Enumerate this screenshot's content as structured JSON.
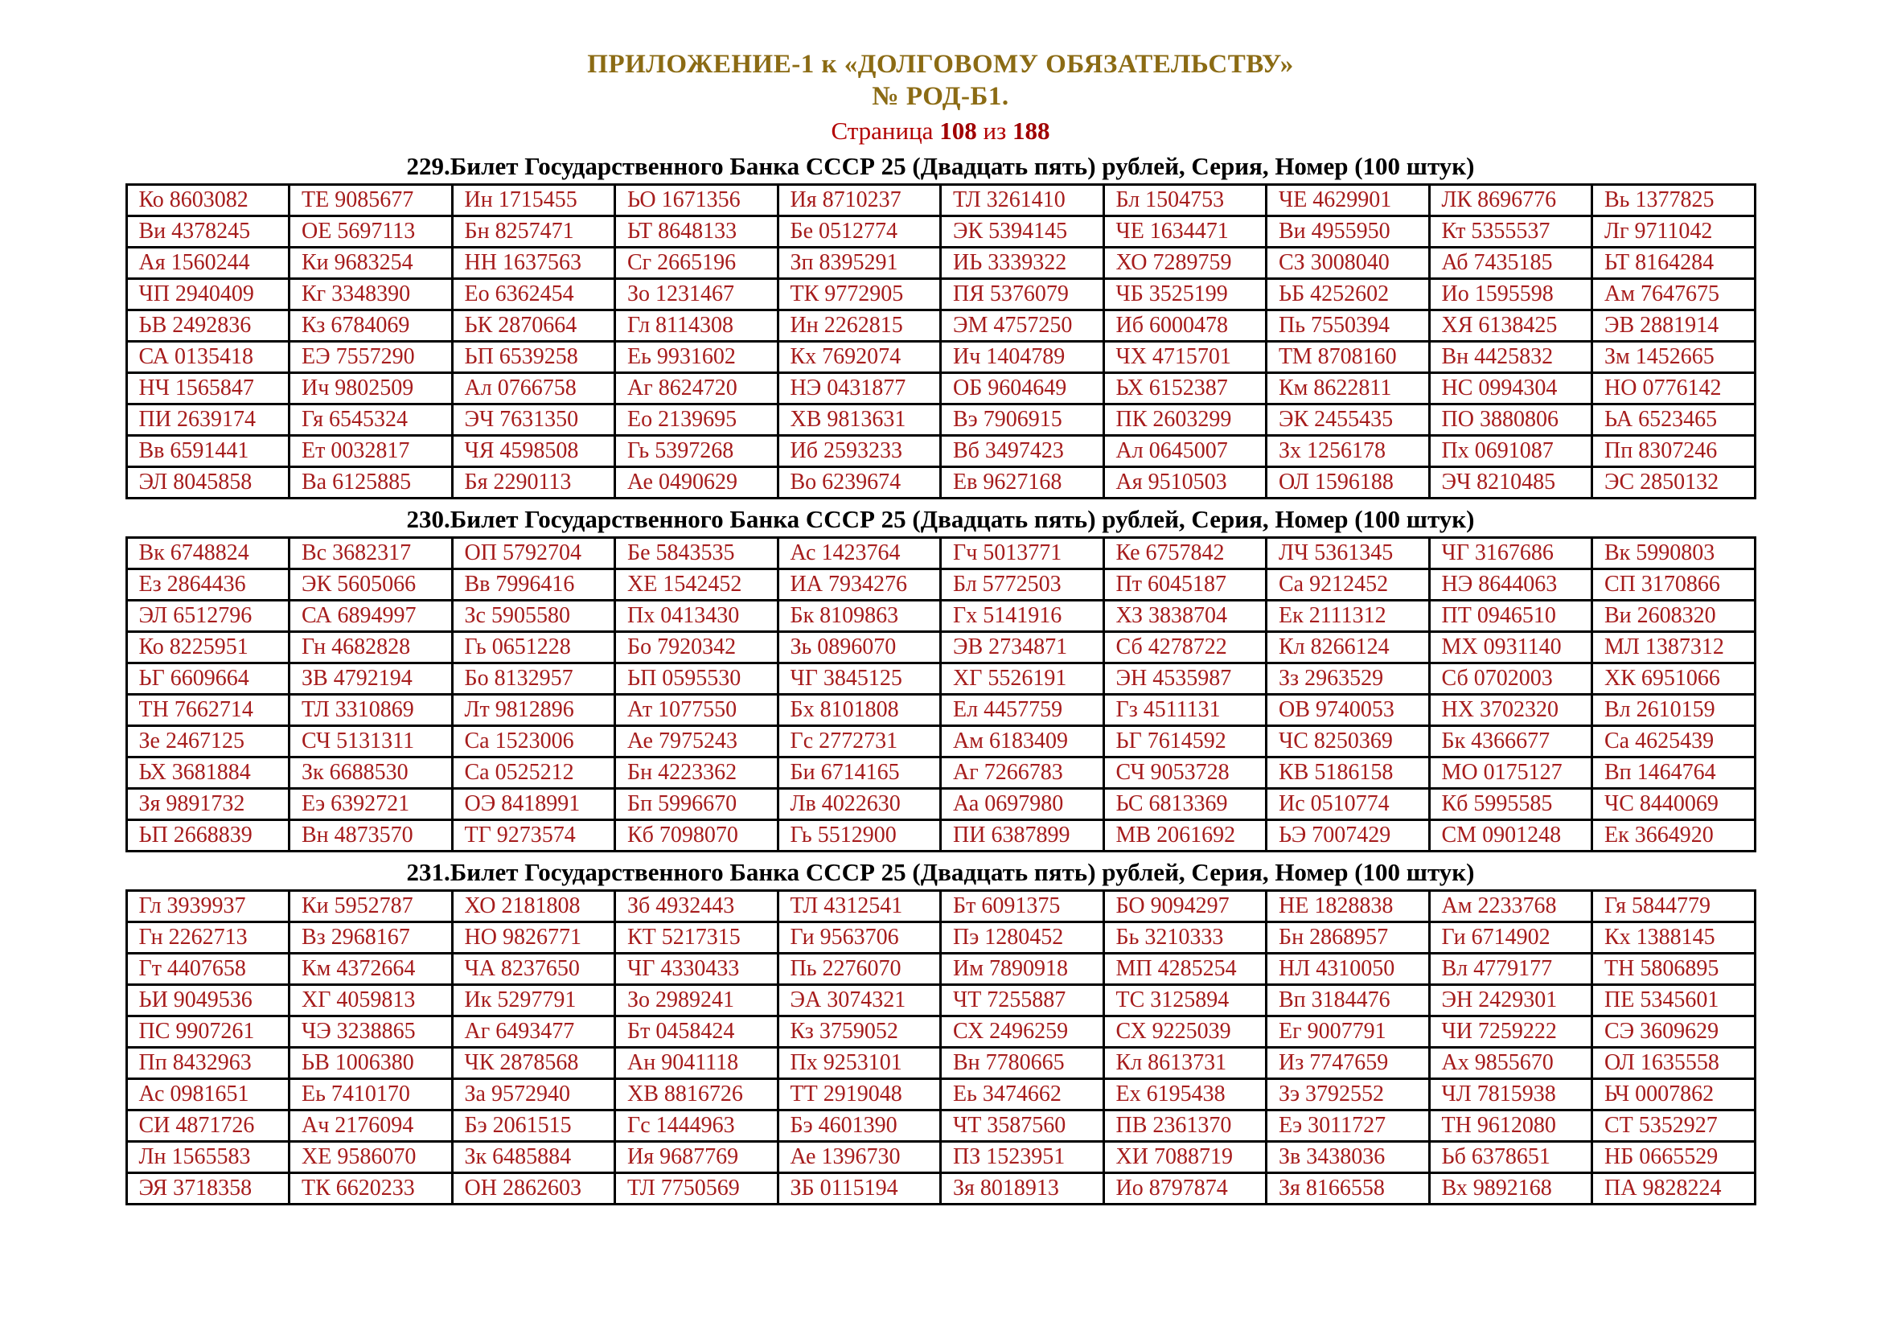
{
  "colors": {
    "title_gold": "#8b6b14",
    "page_red": "#b30000",
    "page_num_red": "#a00000",
    "cell_red": "#a61c1c",
    "heading_black": "#000000",
    "border_black": "#000000"
  },
  "title": {
    "line1": "ПРИЛОЖЕНИЕ-1 к «ДОЛГОВОМУ ОБЯЗАТЕЛЬСТВУ»",
    "line2": "№ РОД-Б1."
  },
  "page": {
    "label": "Страница",
    "current": "108",
    "separator": "из",
    "total": "188"
  },
  "tables": [
    {
      "heading": "229.Билет Государственного Банка СССР 25 (Двадцать пять) рублей, Серия, Номер (100 штук)",
      "rows": [
        [
          "Ко 8603082",
          "ТЕ 9085677",
          "Ин 1715455",
          "ЬО 1671356",
          "Ия 8710237",
          "ТЛ 3261410",
          "Бл 1504753",
          "ЧЕ 4629901",
          "ЛК 8696776",
          "Вь 1377825"
        ],
        [
          "Ви 4378245",
          "ОЕ 5697113",
          "Бн 8257471",
          "ЬТ 8648133",
          "Бе 0512774",
          "ЭК 5394145",
          "ЧЕ 1634471",
          "Ви 4955950",
          "Кт 5355537",
          "Лг 9711042"
        ],
        [
          "Ая 1560244",
          "Ки 9683254",
          "НН 1637563",
          "Сг 2665196",
          "Зп 8395291",
          "ИЬ 3339322",
          "ХО 7289759",
          "СЗ 3008040",
          "Аб 7435185",
          "ЬТ 8164284"
        ],
        [
          "ЧП 2940409",
          "Кг 3348390",
          "Ео 6362454",
          "Зо 1231467",
          "ТК 9772905",
          "ПЯ 5376079",
          "ЧБ 3525199",
          "ЬБ 4252602",
          "Ио 1595598",
          "Ам 7647675"
        ],
        [
          "ЬВ 2492836",
          "Кз 6784069",
          "ЬК 2870664",
          "Гл 8114308",
          "Ин 2262815",
          "ЭМ 4757250",
          "Иб 6000478",
          "Пь 7550394",
          "ХЯ 6138425",
          "ЭВ 2881914"
        ],
        [
          "СА 0135418",
          "ЕЭ 7557290",
          "ЬП 6539258",
          "Еь 9931602",
          "Кх 7692074",
          "Ич 1404789",
          "ЧХ 4715701",
          "ТМ 8708160",
          "Вн 4425832",
          "Зм 1452665"
        ],
        [
          "НЧ 1565847",
          "Ич 9802509",
          "Ал 0766758",
          "Аг 8624720",
          "НЭ 0431877",
          "ОБ 9604649",
          "ЬХ 6152387",
          "Км 8622811",
          "НС 0994304",
          "НО 0776142"
        ],
        [
          "ПИ 2639174",
          "Гя 6545324",
          "ЭЧ 7631350",
          "Ео 2139695",
          "ХВ 9813631",
          "Вэ 7906915",
          "ПК 2603299",
          "ЭК 2455435",
          "ПО 3880806",
          "ЬА 6523465"
        ],
        [
          "Вв 6591441",
          "Ет 0032817",
          "ЧЯ 4598508",
          "Гь 5397268",
          "Иб 2593233",
          "Вб 3497423",
          "Ал 0645007",
          "Зх 1256178",
          "Пх 0691087",
          "Пп 8307246"
        ],
        [
          "ЭЛ 8045858",
          "Ва 6125885",
          "Бя 2290113",
          "Ае 0490629",
          "Во 6239674",
          "Ев 9627168",
          "Ая 9510503",
          "ОЛ 1596188",
          "ЭЧ 8210485",
          "ЭС 2850132"
        ]
      ]
    },
    {
      "heading": "230.Билет Государственного Банка СССР 25 (Двадцать пять) рублей, Серия, Номер (100 штук)",
      "rows": [
        [
          "Вк 6748824",
          "Вс 3682317",
          "ОП 5792704",
          "Бе 5843535",
          "Ас 1423764",
          "Гч 5013771",
          "Ке 6757842",
          "ЛЧ 5361345",
          "ЧГ 3167686",
          "Вк 5990803"
        ],
        [
          "Ез 2864436",
          "ЭК 5605066",
          "Вв 7996416",
          "ХЕ 1542452",
          "ИА 7934276",
          "Бл 5772503",
          "Пт 6045187",
          "Са 9212452",
          "НЭ 8644063",
          "СП 3170866"
        ],
        [
          "ЭЛ 6512796",
          "СА 6894997",
          "Зс 5905580",
          "Пх 0413430",
          "Бк 8109863",
          "Гх 5141916",
          "ХЗ 3838704",
          "Ек 2111312",
          "ПТ 0946510",
          "Ви 2608320"
        ],
        [
          "Ко 8225951",
          "Гн 4682828",
          "Гь 0651228",
          "Бо 7920342",
          "Зь 0896070",
          "ЭВ 2734871",
          "Сб 4278722",
          "Кл 8266124",
          "МХ 0931140",
          "МЛ 1387312"
        ],
        [
          "ЬГ 6609664",
          "ЗВ 4792194",
          "Бо 8132957",
          "ЬП 0595530",
          "ЧГ 3845125",
          "ХГ 5526191",
          "ЭН 4535987",
          "Зз 2963529",
          "Сб 0702003",
          "ХК 6951066"
        ],
        [
          "ТН 7662714",
          "ТЛ 3310869",
          "Лт 9812896",
          "Ат 1077550",
          "Бх 8101808",
          "Ел 4457759",
          "Гз 4511131",
          "ОВ 9740053",
          "НХ 3702320",
          "Вл 2610159"
        ],
        [
          "Зе 2467125",
          "СЧ 5131311",
          "Са 1523006",
          "Ае 7975243",
          "Гс 2772731",
          "Ам 6183409",
          "ЬГ 7614592",
          "ЧС 8250369",
          "Бк 4366677",
          "Са 4625439"
        ],
        [
          "ЬХ 3681884",
          "Зк 6688530",
          "Са 0525212",
          "Бн 4223362",
          "Би 6714165",
          "Аг 7266783",
          "СЧ 9053728",
          "КВ 5186158",
          "МО 0175127",
          "Вп 1464764"
        ],
        [
          "Зя 9891732",
          "Еэ 6392721",
          "ОЭ 8418991",
          "Бп 5996670",
          "Лв 4022630",
          "Аа 0697980",
          "ЬС 6813369",
          "Ис 0510774",
          "Кб 5995585",
          "ЧС 8440069"
        ],
        [
          "ЬП 2668839",
          "Вн 4873570",
          "ТГ 9273574",
          "Кб 7098070",
          "Гь 5512900",
          "ПИ 6387899",
          "МВ 2061692",
          "ЬЭ 7007429",
          "СМ 0901248",
          "Ек 3664920"
        ]
      ]
    },
    {
      "heading": "231.Билет Государственного Банка СССР 25 (Двадцать пять) рублей, Серия, Номер (100 штук)",
      "rows": [
        [
          "Гл 3939937",
          "Ки 5952787",
          "ХО 2181808",
          "Зб 4932443",
          "ТЛ 4312541",
          "Бт 6091375",
          "БО 9094297",
          "НЕ 1828838",
          "Ам 2233768",
          "Гя 5844779"
        ],
        [
          "Гн 2262713",
          "Вз 2968167",
          "НО 9826771",
          "КТ 5217315",
          "Ги 9563706",
          "Пэ 1280452",
          "Бь 3210333",
          "Бн 2868957",
          "Ги 6714902",
          "Кх 1388145"
        ],
        [
          "Гт 4407658",
          "Км 4372664",
          "ЧА 8237650",
          "ЧГ 4330433",
          "Пь 2276070",
          "Им 7890918",
          "МП 4285254",
          "НЛ 4310050",
          "Вл 4779177",
          "ТН 5806895"
        ],
        [
          "ЬИ 9049536",
          "ХГ 4059813",
          "Ик 5297791",
          "Зо 2989241",
          "ЭА 3074321",
          "ЧТ 7255887",
          "ТС 3125894",
          "Вп 3184476",
          "ЭН 2429301",
          "ПЕ 5345601"
        ],
        [
          "ПС 9907261",
          "ЧЭ 3238865",
          "Аг 6493477",
          "Бт 0458424",
          "Кз 3759052",
          "СХ 2496259",
          "СХ 9225039",
          "Ег 9007791",
          "ЧИ 7259222",
          "СЭ 3609629"
        ],
        [
          "Пп 8432963",
          "ЬВ 1006380",
          "ЧК 2878568",
          "Ан 9041118",
          "Пх 9253101",
          "Вн 7780665",
          "Кл 8613731",
          "Из 7747659",
          "Ах 9855670",
          "ОЛ 1635558"
        ],
        [
          "Ас 0981651",
          "Еь 7410170",
          "За 9572940",
          "ХВ 8816726",
          "ТТ 2919048",
          "Еь 3474662",
          "Ех 6195438",
          "Зэ 3792552",
          "ЧЛ 7815938",
          "ЬЧ 0007862"
        ],
        [
          "СИ 4871726",
          "Ач 2176094",
          "Бэ 2061515",
          "Гс 1444963",
          "Бэ 4601390",
          "ЧТ 3587560",
          "ПВ 2361370",
          "Еэ 3011727",
          "ТН 9612080",
          "СТ 5352927"
        ],
        [
          "Лн 1565583",
          "ХЕ 9586070",
          "Зк 6485884",
          "Ия 9687769",
          "Ае 1396730",
          "ПЗ 1523951",
          "ХИ 7088719",
          "Зв 3438036",
          "Ьб 6378651",
          "НБ 0665529"
        ],
        [
          "ЭЯ 3718358",
          "ТК 6620233",
          "ОН 2862603",
          "ТЛ 7750569",
          "ЗБ 0115194",
          "Зя 8018913",
          "Ио 8797874",
          "Зя 8166558",
          "Вх 9892168",
          "ПА 9828224"
        ]
      ]
    }
  ]
}
